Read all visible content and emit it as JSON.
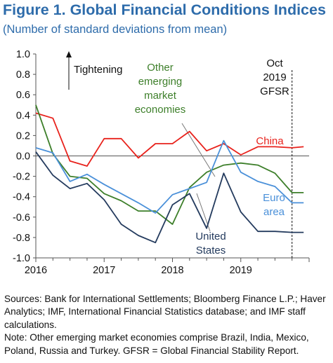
{
  "figure": {
    "title": "Figure 1. Global Financial Conditions Indices",
    "subtitle": "(Number of standard deviations from mean)"
  },
  "chart_data": {
    "type": "line",
    "xlim": [
      2016,
      2020
    ],
    "ylim": [
      -1.0,
      1.0
    ],
    "x_ticks": [
      "2016",
      "2017",
      "2018",
      "2019"
    ],
    "y_ticks": [
      "1.0",
      "0.8",
      "0.6",
      "0.4",
      "0.2",
      "0.0",
      "-0.2",
      "-0.4",
      "-0.6",
      "-0.8",
      "-1.0"
    ],
    "grid": false,
    "annotations": {
      "tightening": "Tightening",
      "oct_line": [
        "Oct",
        "2019",
        "GFSR"
      ]
    },
    "series": [
      {
        "name": "China",
        "label_lines": [
          "China"
        ],
        "color": "#e8221c",
        "x": [
          2016.0,
          2016.25,
          2016.5,
          2016.75,
          2017.0,
          2017.25,
          2017.5,
          2017.75,
          2018.0,
          2018.25,
          2018.5,
          2018.75,
          2019.0,
          2019.25,
          2019.5,
          2019.75,
          2019.92
        ],
        "y": [
          0.42,
          0.37,
          -0.05,
          -0.1,
          0.17,
          0.17,
          -0.02,
          0.12,
          0.12,
          0.24,
          0.05,
          0.12,
          0.01,
          0.09,
          0.09,
          0.08,
          0.09
        ]
      },
      {
        "name": "Other emerging market economies",
        "label_lines": [
          "Other",
          "emerging",
          "market",
          "economies"
        ],
        "color": "#3d7f2a",
        "x": [
          2016.0,
          2016.25,
          2016.5,
          2016.75,
          2017.0,
          2017.25,
          2017.5,
          2017.75,
          2018.0,
          2018.25,
          2018.5,
          2018.75,
          2019.0,
          2019.25,
          2019.5,
          2019.75,
          2019.92
        ],
        "y": [
          0.5,
          0.02,
          -0.2,
          -0.22,
          -0.37,
          -0.44,
          -0.54,
          -0.54,
          -0.67,
          -0.31,
          -0.16,
          -0.09,
          -0.07,
          -0.09,
          -0.17,
          -0.36,
          -0.36
        ]
      },
      {
        "name": "Euro area",
        "label_lines": [
          "Euro",
          "area"
        ],
        "color": "#4a90d9",
        "x": [
          2016.0,
          2016.25,
          2016.5,
          2016.75,
          2017.0,
          2017.25,
          2017.5,
          2017.75,
          2018.0,
          2018.25,
          2018.5,
          2018.75,
          2019.0,
          2019.25,
          2019.5,
          2019.75,
          2019.92
        ],
        "y": [
          0.08,
          0.03,
          -0.25,
          -0.18,
          -0.28,
          -0.37,
          -0.46,
          -0.56,
          -0.38,
          -0.32,
          -0.26,
          0.15,
          -0.16,
          -0.25,
          -0.3,
          -0.46,
          -0.46
        ]
      },
      {
        "name": "United States",
        "label_lines": [
          "United",
          "States"
        ],
        "color": "#243b5e",
        "x": [
          2016.0,
          2016.25,
          2016.5,
          2016.75,
          2017.0,
          2017.25,
          2017.5,
          2017.75,
          2018.0,
          2018.25,
          2018.5,
          2018.75,
          2019.0,
          2019.25,
          2019.5,
          2019.75,
          2019.92
        ],
        "y": [
          0.04,
          -0.19,
          -0.32,
          -0.27,
          -0.43,
          -0.67,
          -0.78,
          -0.85,
          -0.48,
          -0.37,
          -0.71,
          -0.17,
          -0.55,
          -0.74,
          -0.74,
          -0.75,
          -0.75
        ]
      }
    ]
  },
  "notes": {
    "sources": "Sources: Bank for International Settlements; Bloomberg Finance L.P.; Haver Analytics; IMF, International Financial Statistics database; and IMF staff calculations.",
    "note": "Note: Other emerging market economies comprise Brazil, India, Mexico, Poland, Russia and Turkey. GFSR = Global Financial Stability Report."
  }
}
